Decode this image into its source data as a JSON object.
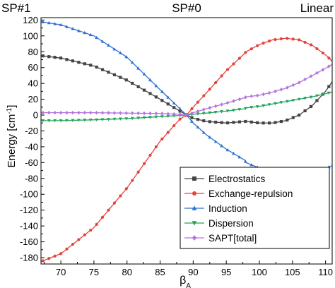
{
  "chart_data": {
    "type": "line",
    "xlabel": "β",
    "xlabel_sub": "A",
    "ylabel": "Energy [cm",
    "ylabel_sup": "-1",
    "ylabel_end": "]",
    "xlim": [
      67,
      111
    ],
    "ylim": [
      -188,
      123
    ],
    "x_ticks": [
      70,
      75,
      80,
      85,
      90,
      95,
      100,
      105,
      110
    ],
    "y_ticks": [
      120,
      100,
      80,
      60,
      40,
      20,
      0,
      -20,
      -40,
      -60,
      -80,
      -100,
      -120,
      -140,
      -160,
      -180
    ],
    "top_labels": [
      {
        "text": "SP#1",
        "x": 67
      },
      {
        "text": "SP#0",
        "x": 89
      },
      {
        "text": "Linear",
        "x": 111
      }
    ],
    "grid": false,
    "legend_position": "bottom-right",
    "series": [
      {
        "name": "Electrostatics",
        "color": "#444444",
        "marker": "square",
        "x": [
          67,
          70,
          75,
          80,
          85,
          88,
          89,
          90,
          92,
          95,
          97.8,
          98,
          100,
          102,
          104,
          106,
          108,
          110,
          111
        ],
        "y": [
          75,
          72,
          62,
          44,
          20,
          5,
          0,
          -4,
          -8,
          -10,
          -8,
          -8,
          -10,
          -10,
          -7,
          0,
          12,
          30,
          42
        ]
      },
      {
        "name": "Exchange-repulsion",
        "color": "#e8413a",
        "marker": "circle",
        "x": [
          67,
          70,
          75,
          80,
          85,
          88,
          89,
          90,
          92,
          95,
          97.8,
          98,
          100,
          102,
          104,
          106,
          108,
          110,
          111
        ],
        "y": [
          -185,
          -175,
          -142,
          -92,
          -33,
          -5,
          0,
          10,
          28,
          56,
          78,
          80,
          89,
          95,
          97,
          95,
          88,
          76,
          68
        ]
      },
      {
        "name": "Induction",
        "color": "#2e6fd1",
        "marker": "triangle-up",
        "x": [
          67,
          70,
          75,
          80,
          85,
          88,
          89,
          90,
          92,
          95,
          97.8,
          98,
          100,
          102,
          104,
          106,
          108,
          110,
          111
        ],
        "y": [
          118,
          114,
          100,
          73,
          32,
          8,
          0,
          -10,
          -25,
          -43,
          -57,
          -60,
          -67,
          -72,
          -74,
          -74,
          -72,
          -67,
          -64
        ]
      },
      {
        "name": "Dispersion",
        "color": "#22a45a",
        "marker": "triangle-down",
        "x": [
          67,
          70,
          75,
          80,
          85,
          88,
          89,
          90,
          92,
          95,
          97.8,
          98,
          100,
          102,
          104,
          106,
          108,
          110,
          111
        ],
        "y": [
          -7,
          -7,
          -6,
          -4.5,
          -2,
          -0.5,
          0,
          1,
          2.5,
          5,
          8,
          9,
          11,
          14,
          17,
          20,
          23,
          27,
          29
        ]
      },
      {
        "name": "SAPT[total]",
        "color": "#b574e0",
        "marker": "diamond",
        "x": [
          67,
          70,
          75,
          80,
          85,
          88,
          89,
          90,
          92,
          95,
          97.8,
          98,
          100,
          102,
          104,
          106,
          108,
          110,
          111
        ],
        "y": [
          3,
          3,
          3,
          2.5,
          2,
          1,
          0,
          3,
          8,
          15,
          22,
          23,
          25,
          29,
          34,
          41,
          50,
          59,
          64
        ]
      }
    ]
  }
}
